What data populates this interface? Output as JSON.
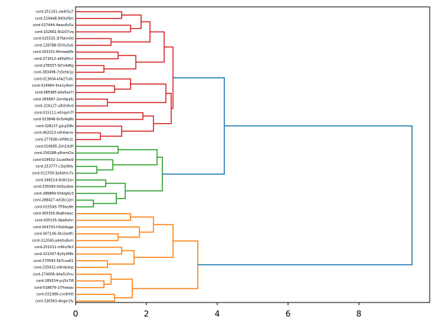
{
  "chart_data": {
    "type": "dendrogram",
    "xlim": [
      0,
      10.0
    ],
    "xticks": [
      0,
      2,
      4,
      6,
      8
    ],
    "tree": {
      "height": 9.5,
      "color": "#1f77b4",
      "children": [
        {
          "height": 4.2,
          "children": [
            {
              "height": 2.75,
              "color": "#d62728",
              "children": [
                {
                  "height": 2.5,
                  "children": [
                    {
                      "height": 2.1,
                      "children": [
                        {
                          "height": 1.85,
                          "children": [
                            {
                              "height": 1.3,
                              "children": [
                                {
                                  "label": "cord-251161-zw4r5u7"
                                },
                                {
                                  "label": "cord-319448-9lt0uf9m"
                                }
                              ]
                            },
                            {
                              "height": 1.55,
                              "children": [
                                {
                                  "label": "cord-017444-4wau6v5x"
                                },
                                {
                                  "label": "cord-102661-8s1l07vq"
                                }
                              ]
                            }
                          ]
                        },
                        {
                          "height": 1.0,
                          "children": [
                            {
                              "label": "cord-025535-3l7bkm0d"
                            },
                            {
                              "label": "cord-128788-f2h0u5xk"
                            }
                          ]
                        }
                      ]
                    },
                    {
                      "height": 1.7,
                      "children": [
                        {
                          "height": 1.2,
                          "children": [
                            {
                              "label": "cord-303101-6tmwq0fe"
                            },
                            {
                              "label": "cord-271612-a90q5hcr"
                            }
                          ]
                        },
                        {
                          "height": 0.8,
                          "children": [
                            {
                              "label": "cord-278337-0j7v4d6g"
                            },
                            {
                              "label": "cord-383498-7s5ehk1p"
                            }
                          ]
                        }
                      ]
                    }
                  ]
                },
                {
                  "height": 2.7,
                  "children": [
                    {
                      "height": 2.55,
                      "children": [
                        {
                          "height": 1.55,
                          "children": [
                            {
                              "label": "cord-013604-kfw27u0c"
                            },
                            {
                              "height": 1.1,
                              "children": [
                                {
                                  "label": "cord-314984-3ne1y9om"
                                },
                                {
                                  "label": "cord-085985-b0s5ex7i"
                                }
                              ]
                            }
                          ]
                        },
                        {
                          "height": 0.9,
                          "children": [
                            {
                              "label": "cord-285887-2xm0pa5j"
                            },
                            {
                              "label": "cord-324127-u8l3s9vd"
                            }
                          ]
                        }
                      ]
                    },
                    {
                      "height": 2.2,
                      "children": [
                        {
                          "height": 1.9,
                          "children": [
                            {
                              "label": "cord-015111-e0nqvh7f"
                            },
                            {
                              "label": "cord-023848-0n5z4q8b"
                            }
                          ]
                        },
                        {
                          "height": 1.3,
                          "children": [
                            {
                              "label": "cord-328137-g1uj3l8s"
                            },
                            {
                              "height": 0.7,
                              "children": [
                                {
                                  "label": "cord-462023-s4h6wrxv"
                                },
                                {
                                  "label": "cord-277838-n0f9tk2c"
                                }
                              ]
                            }
                          ]
                        }
                      ]
                    }
                  ]
                }
              ]
            },
            {
              "height": 2.45,
              "color": "#2ca02c",
              "children": [
                {
                  "height": 2.3,
                  "children": [
                    {
                      "height": 1.2,
                      "children": [
                        {
                          "label": "cord-016895-2kh1tk9f"
                        },
                        {
                          "label": "cord-256288-y6tsmf2a"
                        }
                      ]
                    },
                    {
                      "height": 1.05,
                      "children": [
                        {
                          "label": "cord-029632-1suw0ke9"
                        },
                        {
                          "height": 0.6,
                          "children": [
                            {
                              "label": "cord-253777-c3ajr8dv"
                            },
                            {
                              "label": "cord-012709-3p6dhm7x"
                            }
                          ]
                        }
                      ]
                    }
                  ]
                },
                {
                  "height": 1.4,
                  "children": [
                    {
                      "height": 0.85,
                      "children": [
                        {
                          "label": "cord-346514-9c8lr2xn"
                        },
                        {
                          "label": "cord-335590-0d3yu6ze"
                        }
                      ]
                    },
                    {
                      "height": 1.15,
                      "children": [
                        {
                          "label": "cord-286869-5hbtg0y3"
                        },
                        {
                          "height": 0.5,
                          "children": [
                            {
                              "label": "cord-288427-w02ks1jm"
                            },
                            {
                              "label": "cord-025549-7ff9wy8e"
                            }
                          ]
                        }
                      ]
                    }
                  ]
                }
              ]
            }
          ]
        },
        {
          "height": 3.45,
          "color": "#ff7f0e",
          "children": [
            {
              "height": 2.75,
              "children": [
                {
                  "height": 2.2,
                  "children": [
                    {
                      "height": 1.55,
                      "children": [
                        {
                          "label": "cord-305355-8tq6mbyc"
                        },
                        {
                          "label": "cord-035155-l9jw6ohn"
                        }
                      ]
                    },
                    {
                      "height": 1.8,
                      "children": [
                        {
                          "label": "cord-004703-h5xb4qge"
                        },
                        {
                          "height": 1.2,
                          "children": [
                            {
                              "label": "cord-007106-0kr2wdfn"
                            },
                            {
                              "label": "cord-312045-p4e0u8xm"
                            }
                          ]
                        }
                      ]
                    }
                  ]
                },
                {
                  "height": 1.65,
                  "children": [
                    {
                      "height": 1.3,
                      "children": [
                        {
                          "label": "cord-251011-rn6hz3k2"
                        },
                        {
                          "label": "cord-321507-8y0y0f4b"
                        }
                      ]
                    },
                    {
                      "height": 0.9,
                      "children": [
                        {
                          "label": "cord-270593-5b7cxa61"
                        },
                        {
                          "label": "cord-335931-e9mlk4sp"
                        }
                      ]
                    }
                  ]
                }
              ]
            },
            {
              "height": 1.6,
              "children": [
                {
                  "height": 1.0,
                  "children": [
                    {
                      "label": "cord-274008-4dw5s0nu"
                    },
                    {
                      "height": 0.8,
                      "children": [
                        {
                          "label": "cord-289154-ycj3v7l8"
                        },
                        {
                          "label": "cord-018679-1f7heeqv"
                        }
                      ]
                    }
                  ]
                },
                {
                  "height": 1.1,
                  "children": [
                    {
                      "label": "cord-031986-cvn8rfj0"
                    },
                    {
                      "label": "cord-330583-4kqpr1fy"
                    }
                  ]
                }
              ]
            }
          ]
        }
      ]
    }
  }
}
